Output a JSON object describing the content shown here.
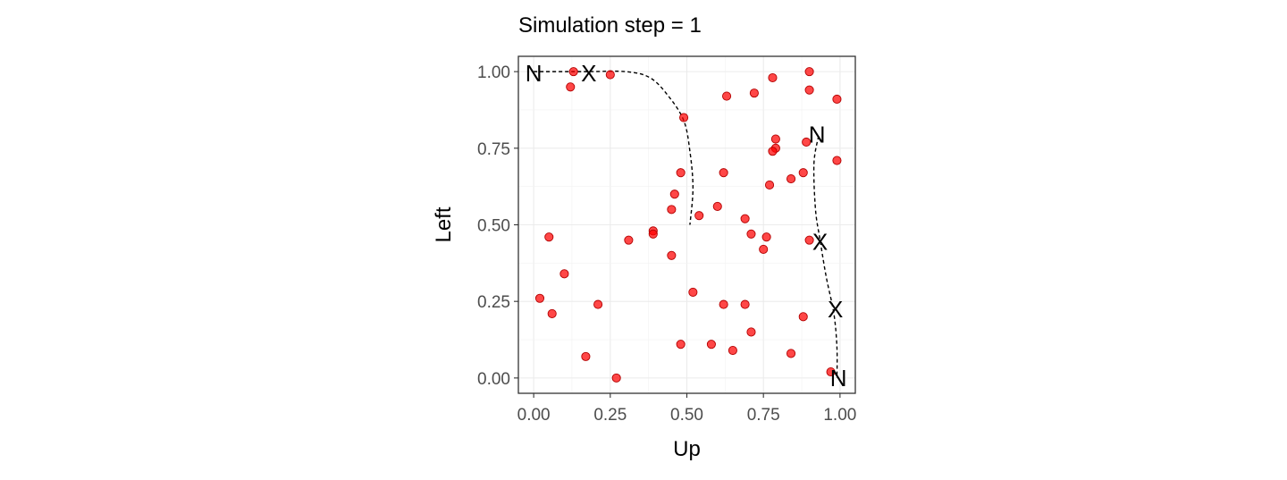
{
  "chart_data": {
    "type": "scatter",
    "title": "Simulation step = 1",
    "xlabel": "Up",
    "ylabel": "Left",
    "xlim": [
      -0.05,
      1.05
    ],
    "ylim": [
      -0.05,
      1.05
    ],
    "x_ticks": [
      0,
      0.25,
      0.5,
      0.75,
      1
    ],
    "y_ticks": [
      0,
      0.25,
      0.5,
      0.75,
      1
    ],
    "x_tick_labels": [
      "0.00",
      "0.25",
      "0.50",
      "0.75",
      "1.00"
    ],
    "y_tick_labels": [
      "0.00",
      "0.25",
      "0.50",
      "0.75",
      "1.00"
    ],
    "grid": true,
    "point_color": "#ff0000",
    "point_edge_color": "#b30000",
    "line_color": "#000000",
    "points": [
      {
        "x": 0.13,
        "y": 1.0
      },
      {
        "x": 0.12,
        "y": 0.95
      },
      {
        "x": 0.25,
        "y": 0.99
      },
      {
        "x": 0.49,
        "y": 0.85
      },
      {
        "x": 0.63,
        "y": 0.92
      },
      {
        "x": 0.72,
        "y": 0.93
      },
      {
        "x": 0.78,
        "y": 0.98
      },
      {
        "x": 0.9,
        "y": 1.0
      },
      {
        "x": 0.9,
        "y": 0.94
      },
      {
        "x": 0.99,
        "y": 0.91
      },
      {
        "x": 0.79,
        "y": 0.78
      },
      {
        "x": 0.89,
        "y": 0.77
      },
      {
        "x": 0.79,
        "y": 0.75
      },
      {
        "x": 0.78,
        "y": 0.74
      },
      {
        "x": 0.99,
        "y": 0.71
      },
      {
        "x": 0.48,
        "y": 0.67
      },
      {
        "x": 0.62,
        "y": 0.67
      },
      {
        "x": 0.88,
        "y": 0.67
      },
      {
        "x": 0.84,
        "y": 0.65
      },
      {
        "x": 0.77,
        "y": 0.63
      },
      {
        "x": 0.46,
        "y": 0.6
      },
      {
        "x": 0.6,
        "y": 0.56
      },
      {
        "x": 0.45,
        "y": 0.55
      },
      {
        "x": 0.54,
        "y": 0.53
      },
      {
        "x": 0.69,
        "y": 0.52
      },
      {
        "x": 0.39,
        "y": 0.48
      },
      {
        "x": 0.39,
        "y": 0.47
      },
      {
        "x": 0.71,
        "y": 0.47
      },
      {
        "x": 0.76,
        "y": 0.46
      },
      {
        "x": 0.05,
        "y": 0.46
      },
      {
        "x": 0.31,
        "y": 0.45
      },
      {
        "x": 0.9,
        "y": 0.45
      },
      {
        "x": 0.75,
        "y": 0.42
      },
      {
        "x": 0.45,
        "y": 0.4
      },
      {
        "x": 0.1,
        "y": 0.34
      },
      {
        "x": 0.52,
        "y": 0.28
      },
      {
        "x": 0.02,
        "y": 0.26
      },
      {
        "x": 0.21,
        "y": 0.24
      },
      {
        "x": 0.62,
        "y": 0.24
      },
      {
        "x": 0.69,
        "y": 0.24
      },
      {
        "x": 0.06,
        "y": 0.21
      },
      {
        "x": 0.88,
        "y": 0.2
      },
      {
        "x": 0.71,
        "y": 0.15
      },
      {
        "x": 0.48,
        "y": 0.11
      },
      {
        "x": 0.58,
        "y": 0.11
      },
      {
        "x": 0.65,
        "y": 0.09
      },
      {
        "x": 0.84,
        "y": 0.08
      },
      {
        "x": 0.17,
        "y": 0.07
      },
      {
        "x": 0.27,
        "y": 0.0
      },
      {
        "x": 0.97,
        "y": 0.02
      }
    ],
    "paths": [
      {
        "points": [
          [
            0.0,
            1.0
          ],
          [
            0.17,
            1.0
          ],
          [
            0.3,
            1.0
          ],
          [
            0.38,
            0.98
          ],
          [
            0.44,
            0.92
          ],
          [
            0.49,
            0.84
          ],
          [
            0.51,
            0.74
          ],
          [
            0.52,
            0.62
          ],
          [
            0.51,
            0.5
          ]
        ]
      },
      {
        "points": [
          [
            0.93,
            0.79
          ],
          [
            0.915,
            0.7
          ],
          [
            0.92,
            0.55
          ],
          [
            0.935,
            0.45
          ],
          [
            0.955,
            0.33
          ],
          [
            0.98,
            0.21
          ],
          [
            0.99,
            0.1
          ],
          [
            0.99,
            0.0
          ]
        ]
      }
    ],
    "markers": [
      {
        "label": "N",
        "x": 0.0,
        "y": 0.995
      },
      {
        "label": "X",
        "x": 0.18,
        "y": 0.995
      },
      {
        "label": "N",
        "x": 0.925,
        "y": 0.795
      },
      {
        "label": "X",
        "x": 0.935,
        "y": 0.445
      },
      {
        "label": "X",
        "x": 0.985,
        "y": 0.225
      },
      {
        "label": "N",
        "x": 0.995,
        "y": 0.0
      }
    ]
  }
}
